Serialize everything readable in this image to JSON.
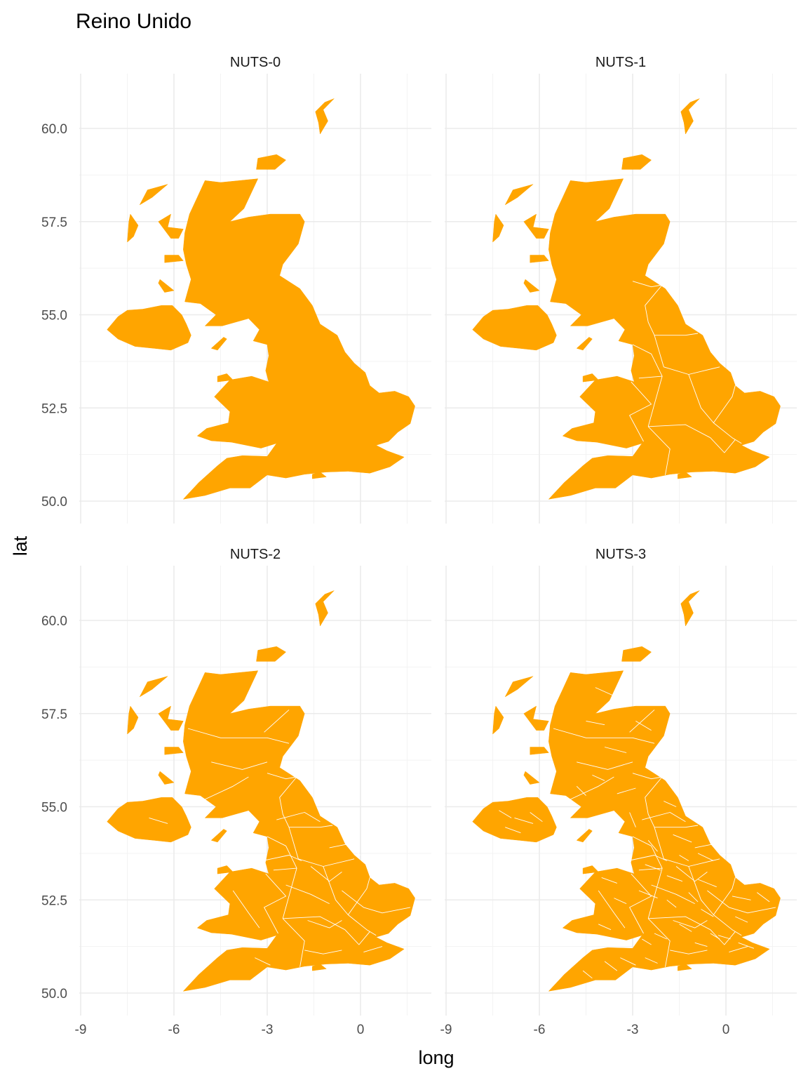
{
  "chart_data": {
    "type": "map",
    "title": "Reino Unido",
    "xlabel": "long",
    "ylabel": "lat",
    "xlim": [
      -9.0,
      1.8
    ],
    "ylim": [
      49.8,
      61.0
    ],
    "x_ticks": [
      -9,
      -6,
      -3,
      0
    ],
    "x_tick_labels": [
      "-9",
      "-6",
      "-3",
      "0"
    ],
    "y_ticks": [
      50.0,
      52.5,
      55.0,
      57.5,
      60.0
    ],
    "y_tick_labels": [
      "50.0",
      "52.5",
      "55.0",
      "57.5",
      "60.0"
    ],
    "grid": true,
    "fill_color": "#FFA500",
    "border_color": "#FFFFFF",
    "panels": [
      {
        "label": "NUTS-0",
        "level": 0
      },
      {
        "label": "NUTS-1",
        "level": 1
      },
      {
        "label": "NUTS-2",
        "level": 2
      },
      {
        "label": "NUTS-3",
        "level": 3
      }
    ]
  }
}
